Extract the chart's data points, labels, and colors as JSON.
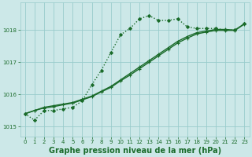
{
  "bg_color": "#cce8e8",
  "grid_color": "#99cccc",
  "line_color": "#1a6b2a",
  "xlabel": "Graphe pression niveau de la mer (hPa)",
  "xlabel_fontsize": 7.0,
  "xlabel_color": "#1a6b2a",
  "tick_color": "#1a6b2a",
  "tick_fontsize": 5.0,
  "ylim": [
    1014.7,
    1018.85
  ],
  "xlim": [
    -0.5,
    23.5
  ],
  "yticks": [
    1015,
    1016,
    1017,
    1018
  ],
  "xticks": [
    0,
    1,
    2,
    3,
    4,
    5,
    6,
    7,
    8,
    9,
    10,
    11,
    12,
    13,
    14,
    15,
    16,
    17,
    18,
    19,
    20,
    21,
    22,
    23
  ],
  "series": [
    {
      "y": [
        1015.4,
        1015.2,
        1015.5,
        1015.5,
        1015.55,
        1015.6,
        1015.8,
        1016.3,
        1016.75,
        1017.3,
        1017.85,
        1018.05,
        1018.35,
        1018.45,
        1018.3,
        1018.3,
        1018.35,
        1018.1,
        1018.05,
        1018.05,
        1018.05,
        1018.0,
        1018.0,
        1018.2
      ],
      "linestyle": ":",
      "linewidth": 1.0,
      "marker": "D",
      "markersize": 2.0
    },
    {
      "y": [
        1015.4,
        1015.5,
        1015.6,
        1015.65,
        1015.7,
        1015.75,
        1015.85,
        1015.95,
        1016.1,
        1016.25,
        1016.45,
        1016.65,
        1016.85,
        1017.05,
        1017.25,
        1017.45,
        1017.65,
        1017.8,
        1017.92,
        1017.97,
        1018.02,
        1018.02,
        1018.0,
        1018.2
      ],
      "linestyle": "-",
      "linewidth": 1.0,
      "marker": "+",
      "markersize": 3.5
    },
    {
      "y": [
        1015.4,
        1015.5,
        1015.58,
        1015.62,
        1015.68,
        1015.73,
        1015.83,
        1015.93,
        1016.08,
        1016.22,
        1016.42,
        1016.6,
        1016.8,
        1017.0,
        1017.2,
        1017.4,
        1017.6,
        1017.75,
        1017.88,
        1017.94,
        1017.99,
        1017.99,
        1017.99,
        1018.19
      ],
      "linestyle": "-",
      "linewidth": 1.0,
      "marker": "+",
      "markersize": 3.5
    }
  ]
}
